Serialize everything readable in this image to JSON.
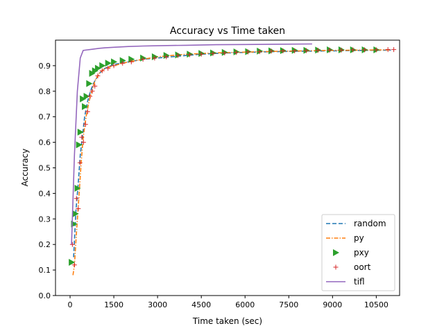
{
  "chart_data": {
    "type": "line",
    "title": "Accuracy vs Time taken",
    "xlabel": "Time taken (sec)",
    "ylabel": "Accuracy",
    "xlim": [
      -500,
      11300
    ],
    "ylim": [
      0,
      1.0
    ],
    "xticks": [
      0,
      1500,
      3000,
      4500,
      6000,
      7500,
      9000,
      10500
    ],
    "xtick_labels": [
      "0",
      "1500",
      "3000",
      "4500",
      "6000",
      "7500",
      "9000",
      "10500"
    ],
    "yticks": [
      0.0,
      0.1,
      0.2,
      0.3,
      0.4,
      0.5,
      0.6,
      0.7,
      0.8,
      0.9
    ],
    "ytick_labels": [
      "0.0",
      "0.1",
      "0.2",
      "0.3",
      "0.4",
      "0.5",
      "0.6",
      "0.7",
      "0.8",
      "0.9"
    ],
    "grid": false,
    "legend_position": "bottom-right",
    "series": [
      {
        "name": "random",
        "style": "dashed",
        "color": "#1f77b4",
        "points": [
          [
            120,
            0.15
          ],
          [
            200,
            0.33
          ],
          [
            280,
            0.44
          ],
          [
            350,
            0.55
          ],
          [
            420,
            0.62
          ],
          [
            500,
            0.7
          ],
          [
            600,
            0.76
          ],
          [
            700,
            0.8
          ],
          [
            800,
            0.83
          ],
          [
            900,
            0.85
          ],
          [
            1000,
            0.87
          ],
          [
            1200,
            0.89
          ],
          [
            1500,
            0.905
          ],
          [
            2000,
            0.915
          ],
          [
            2500,
            0.925
          ],
          [
            3000,
            0.93
          ],
          [
            3500,
            0.935
          ],
          [
            4000,
            0.94
          ],
          [
            4500,
            0.945
          ],
          [
            5000,
            0.948
          ],
          [
            5500,
            0.95
          ],
          [
            6000,
            0.952
          ],
          [
            7000,
            0.955
          ],
          [
            8000,
            0.957
          ],
          [
            9000,
            0.958
          ],
          [
            10000,
            0.96
          ],
          [
            11000,
            0.961
          ]
        ]
      },
      {
        "name": "py",
        "style": "dashdot",
        "color": "#ff7f0e",
        "points": [
          [
            100,
            0.08
          ],
          [
            150,
            0.12
          ],
          [
            220,
            0.25
          ],
          [
            300,
            0.38
          ],
          [
            380,
            0.52
          ],
          [
            450,
            0.62
          ],
          [
            550,
            0.7
          ],
          [
            650,
            0.76
          ],
          [
            750,
            0.8
          ],
          [
            850,
            0.84
          ],
          [
            1000,
            0.87
          ],
          [
            1200,
            0.89
          ],
          [
            1500,
            0.9
          ],
          [
            2000,
            0.915
          ],
          [
            2500,
            0.925
          ],
          [
            3000,
            0.935
          ],
          [
            3500,
            0.94
          ],
          [
            4000,
            0.945
          ],
          [
            5000,
            0.95
          ],
          [
            6000,
            0.953
          ],
          [
            7000,
            0.956
          ],
          [
            8000,
            0.958
          ],
          [
            9000,
            0.96
          ],
          [
            10000,
            0.961
          ],
          [
            11000,
            0.962
          ]
        ]
      },
      {
        "name": "pxy",
        "style": "triangle-right-marker",
        "color": "#2ca02c",
        "points": [
          [
            50,
            0.13
          ],
          [
            130,
            0.28
          ],
          [
            180,
            0.32
          ],
          [
            250,
            0.42
          ],
          [
            300,
            0.59
          ],
          [
            350,
            0.64
          ],
          [
            430,
            0.77
          ],
          [
            500,
            0.74
          ],
          [
            560,
            0.78
          ],
          [
            650,
            0.83
          ],
          [
            750,
            0.87
          ],
          [
            850,
            0.88
          ],
          [
            950,
            0.89
          ],
          [
            1100,
            0.9
          ],
          [
            1300,
            0.91
          ],
          [
            1500,
            0.915
          ],
          [
            1800,
            0.92
          ],
          [
            2100,
            0.925
          ],
          [
            2500,
            0.93
          ],
          [
            2900,
            0.935
          ],
          [
            3300,
            0.94
          ],
          [
            3700,
            0.942
          ],
          [
            4100,
            0.945
          ],
          [
            4500,
            0.948
          ],
          [
            4900,
            0.95
          ],
          [
            5300,
            0.952
          ],
          [
            5700,
            0.954
          ],
          [
            6100,
            0.955
          ],
          [
            6500,
            0.957
          ],
          [
            6900,
            0.958
          ],
          [
            7300,
            0.959
          ],
          [
            7700,
            0.96
          ],
          [
            8100,
            0.96
          ],
          [
            8500,
            0.961
          ],
          [
            8900,
            0.962
          ],
          [
            9300,
            0.962
          ],
          [
            9700,
            0.962
          ],
          [
            10100,
            0.962
          ],
          [
            10500,
            0.962
          ]
        ]
      },
      {
        "name": "oort",
        "style": "plus-marker",
        "color": "#d62728",
        "points": [
          [
            80,
            0.2
          ],
          [
            150,
            0.12
          ],
          [
            220,
            0.38
          ],
          [
            280,
            0.34
          ],
          [
            340,
            0.52
          ],
          [
            400,
            0.62
          ],
          [
            460,
            0.6
          ],
          [
            530,
            0.67
          ],
          [
            600,
            0.72
          ],
          [
            680,
            0.78
          ],
          [
            760,
            0.8
          ],
          [
            850,
            0.82
          ],
          [
            950,
            0.86
          ],
          [
            1100,
            0.88
          ],
          [
            1300,
            0.89
          ],
          [
            1500,
            0.9
          ],
          [
            1800,
            0.91
          ],
          [
            2100,
            0.915
          ],
          [
            2500,
            0.925
          ],
          [
            2900,
            0.93
          ],
          [
            3300,
            0.935
          ],
          [
            3700,
            0.94
          ],
          [
            4100,
            0.943
          ],
          [
            4500,
            0.945
          ],
          [
            4900,
            0.948
          ],
          [
            5300,
            0.95
          ],
          [
            5700,
            0.952
          ],
          [
            6100,
            0.954
          ],
          [
            6500,
            0.955
          ],
          [
            6900,
            0.957
          ],
          [
            7300,
            0.958
          ],
          [
            7700,
            0.958
          ],
          [
            8100,
            0.959
          ],
          [
            8500,
            0.96
          ],
          [
            8900,
            0.961
          ],
          [
            9300,
            0.961
          ],
          [
            9700,
            0.962
          ],
          [
            10100,
            0.962
          ],
          [
            10500,
            0.962
          ],
          [
            10900,
            0.963
          ],
          [
            11100,
            0.963
          ]
        ]
      },
      {
        "name": "tifl",
        "style": "solid",
        "color": "#9467bd",
        "points": [
          [
            50,
            0.2
          ],
          [
            150,
            0.55
          ],
          [
            250,
            0.8
          ],
          [
            350,
            0.93
          ],
          [
            450,
            0.96
          ],
          [
            600,
            0.962
          ],
          [
            800,
            0.965
          ],
          [
            1000,
            0.968
          ],
          [
            1200,
            0.97
          ],
          [
            1500,
            0.972
          ],
          [
            2000,
            0.975
          ],
          [
            2500,
            0.977
          ],
          [
            3000,
            0.978
          ],
          [
            3500,
            0.979
          ],
          [
            4000,
            0.98
          ],
          [
            5000,
            0.982
          ],
          [
            6000,
            0.983
          ],
          [
            7000,
            0.984
          ],
          [
            8300,
            0.985
          ]
        ]
      }
    ]
  }
}
